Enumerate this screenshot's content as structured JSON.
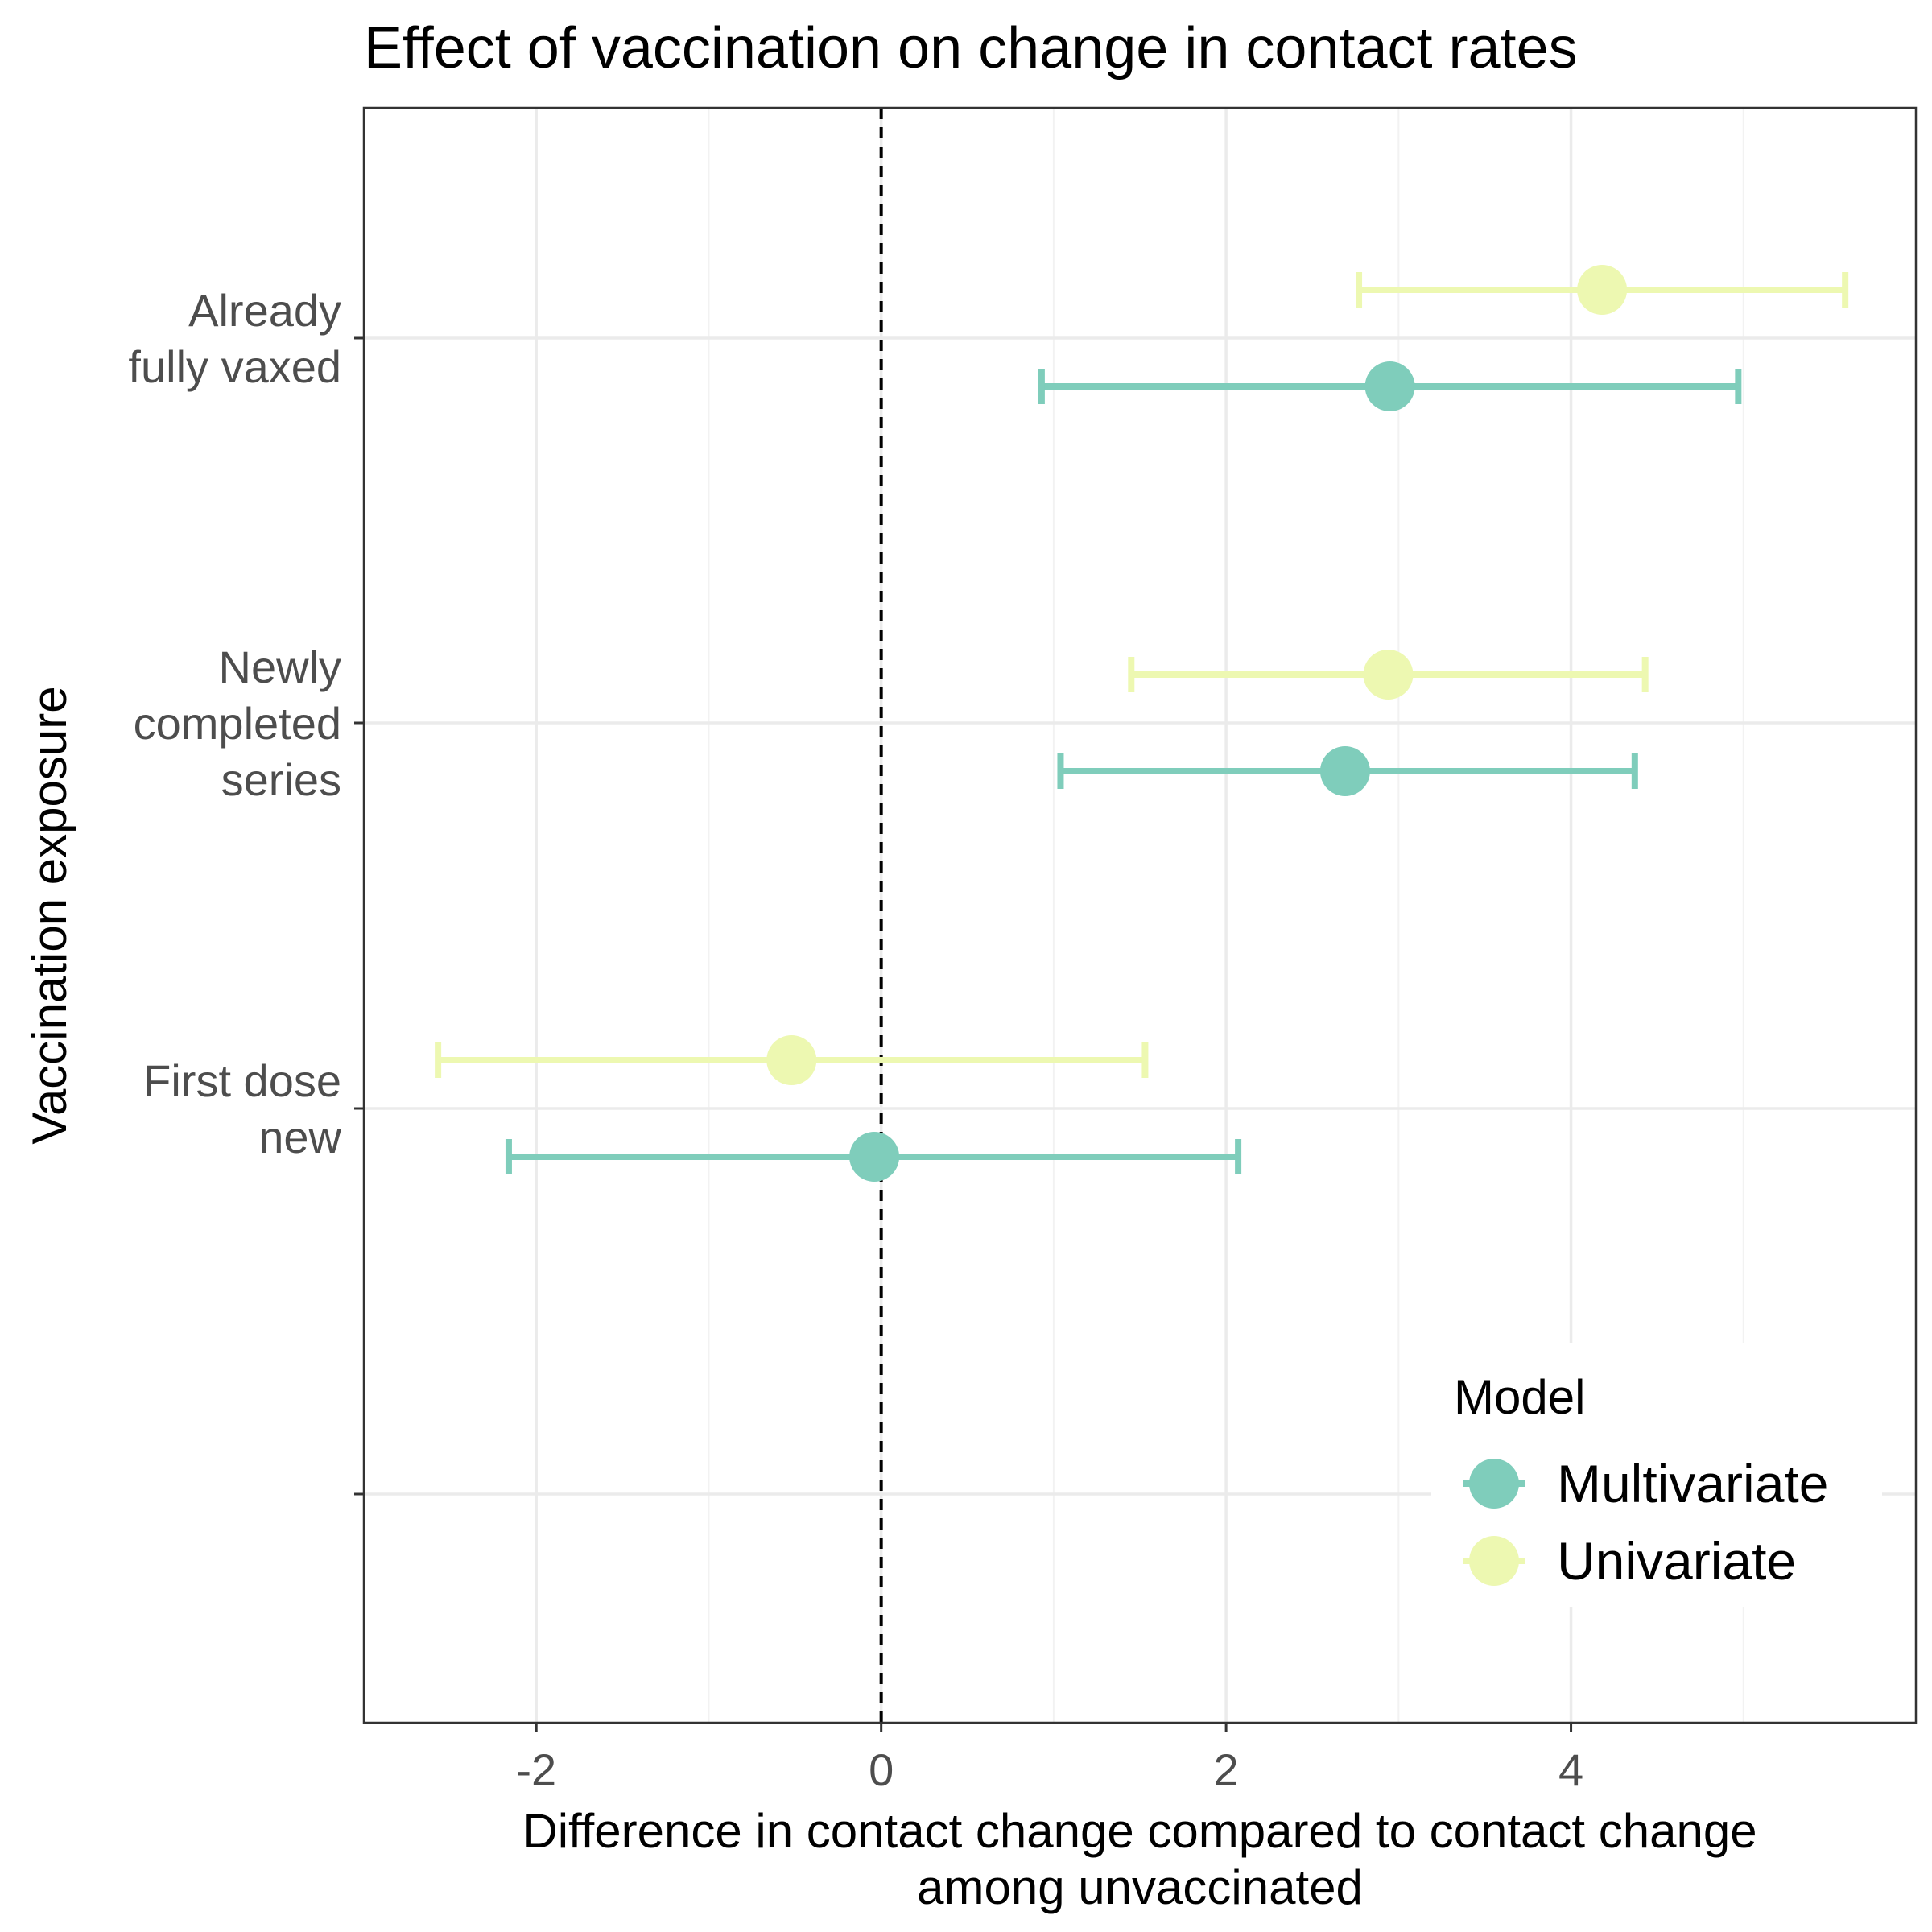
{
  "chart_data": {
    "type": "errorbar",
    "title": "Effect of vaccination on change in contact rates",
    "xlabel": [
      "Difference in contact change compared to contact change",
      "among unvaccinated"
    ],
    "ylabel": "Vaccination exposure",
    "xlim": [
      -3.0,
      6.0
    ],
    "x_ticks": [
      -2,
      0,
      2,
      4
    ],
    "x_tick_labels": [
      "-2",
      "0",
      "2",
      "4"
    ],
    "reference_line": {
      "x": 0,
      "style": "dashed",
      "color": "#000000"
    },
    "grid": true,
    "categories": [
      {
        "id": "already",
        "label": [
          "Already",
          "fully vaxed"
        ]
      },
      {
        "id": "newly",
        "label": [
          "Newly",
          "completed",
          "series"
        ]
      },
      {
        "id": "first",
        "label": [
          "First dose",
          "new"
        ]
      },
      {
        "id": "blank",
        "label": []
      }
    ],
    "series": [
      {
        "name": "Multivariate",
        "color": "#7fcdbb",
        "points": [
          {
            "category": "already",
            "estimate": 2.95,
            "lower": 0.93,
            "upper": 4.97
          },
          {
            "category": "newly",
            "estimate": 2.69,
            "lower": 1.04,
            "upper": 4.37
          },
          {
            "category": "first",
            "estimate": -0.04,
            "lower": -2.16,
            "upper": 2.07
          }
        ]
      },
      {
        "name": "Univariate",
        "color": "#edf8b1",
        "points": [
          {
            "category": "already",
            "estimate": 4.18,
            "lower": 2.77,
            "upper": 5.59
          },
          {
            "category": "newly",
            "estimate": 2.94,
            "lower": 1.45,
            "upper": 4.43
          },
          {
            "category": "first",
            "estimate": -0.52,
            "lower": -2.57,
            "upper": 1.53
          }
        ]
      }
    ],
    "legend": {
      "title": "Model",
      "position": "bottom-right"
    }
  }
}
